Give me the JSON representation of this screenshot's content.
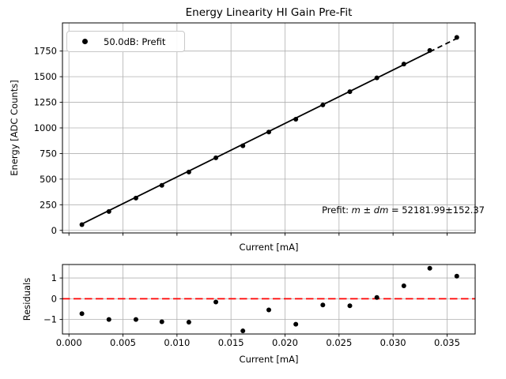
{
  "figure": {
    "background": "#ffffff",
    "frame_color": "#000000"
  },
  "chart_data": [
    {
      "type": "scatter",
      "title": "Energy Linearity HI Gain Pre-Fit",
      "xlabel": "Current [mA]",
      "ylabel": "Energy [ADC Counts]",
      "xlim": [
        -0.0006,
        0.0376
      ],
      "ylim": [
        -25,
        2025
      ],
      "grid": true,
      "grid_color": "#b0b0b0",
      "xticks": [
        0.0,
        0.005,
        0.01,
        0.015,
        0.02,
        0.025,
        0.03,
        0.035
      ],
      "xtick_labels": null,
      "yticks": [
        0,
        250,
        500,
        750,
        1000,
        1250,
        1500,
        1750
      ],
      "ytick_labels": [
        "0",
        "250",
        "500",
        "750",
        "1000",
        "1250",
        "1500",
        "1750"
      ],
      "legend": {
        "label": "50.0dB: Prefit",
        "position": "upper left",
        "marker": "dot",
        "marker_color": "#000000"
      },
      "annotation": {
        "position": "lower right",
        "parts": [
          {
            "text": "Prefit: ",
            "italic": false
          },
          {
            "text": "m ± dm",
            "italic": true
          },
          {
            "text": " = 52181.99±152.37",
            "italic": false
          }
        ]
      },
      "fit": {
        "m": 52181.99,
        "dm": 152.37
      },
      "series": [
        {
          "name": "prefit-fit-line-solid",
          "type": "line",
          "style": "solid",
          "color": "#000000",
          "x": [
            0.0012,
            0.0334
          ],
          "y": [
            62.6,
            1742.9
          ]
        },
        {
          "name": "prefit-fit-line-extrapolated",
          "type": "line",
          "style": "dashed",
          "color": "#000000",
          "x": [
            0.0334,
            0.0359
          ],
          "y": [
            1742.9,
            1873.3
          ]
        },
        {
          "name": "prefit-data-points",
          "type": "scatter",
          "color": "#000000",
          "x": [
            0.0012,
            0.0037,
            0.0062,
            0.0086,
            0.0111,
            0.0136,
            0.0161,
            0.0185,
            0.021,
            0.0235,
            0.026,
            0.0285,
            0.031,
            0.0334,
            0.0359
          ],
          "y": [
            56,
            184,
            315,
            439,
            569,
            708,
            826,
            960,
            1085,
            1224,
            1354,
            1488,
            1623,
            1756,
            1883
          ]
        }
      ]
    },
    {
      "type": "scatter",
      "title": "",
      "xlabel": "Current [mA]",
      "ylabel": "Residuals",
      "xlim": [
        -0.0006,
        0.0376
      ],
      "ylim": [
        -1.7,
        1.65
      ],
      "grid": true,
      "grid_color": "#b0b0b0",
      "xticks": [
        0.0,
        0.005,
        0.01,
        0.015,
        0.02,
        0.025,
        0.03,
        0.035
      ],
      "xtick_labels": [
        "0.000",
        "0.005",
        "0.010",
        "0.015",
        "0.020",
        "0.025",
        "0.030",
        "0.035"
      ],
      "yticks": [
        -1,
        0,
        1
      ],
      "ytick_labels": [
        "−1",
        "0",
        "1"
      ],
      "refline": {
        "y": 0,
        "color": "#ff0000",
        "style": "dashed"
      },
      "series": [
        {
          "name": "residual-points",
          "type": "scatter",
          "color": "#000000",
          "x": [
            0.0012,
            0.0037,
            0.0062,
            0.0086,
            0.0111,
            0.0136,
            0.0161,
            0.0185,
            0.021,
            0.0235,
            0.026,
            0.0285,
            0.031,
            0.0334,
            0.0359
          ],
          "y": [
            -0.72,
            -1.0,
            -1.0,
            -1.11,
            -1.13,
            -0.16,
            -1.55,
            -0.54,
            -1.23,
            -0.3,
            -0.34,
            0.06,
            0.62,
            1.47,
            1.09
          ]
        }
      ]
    }
  ]
}
